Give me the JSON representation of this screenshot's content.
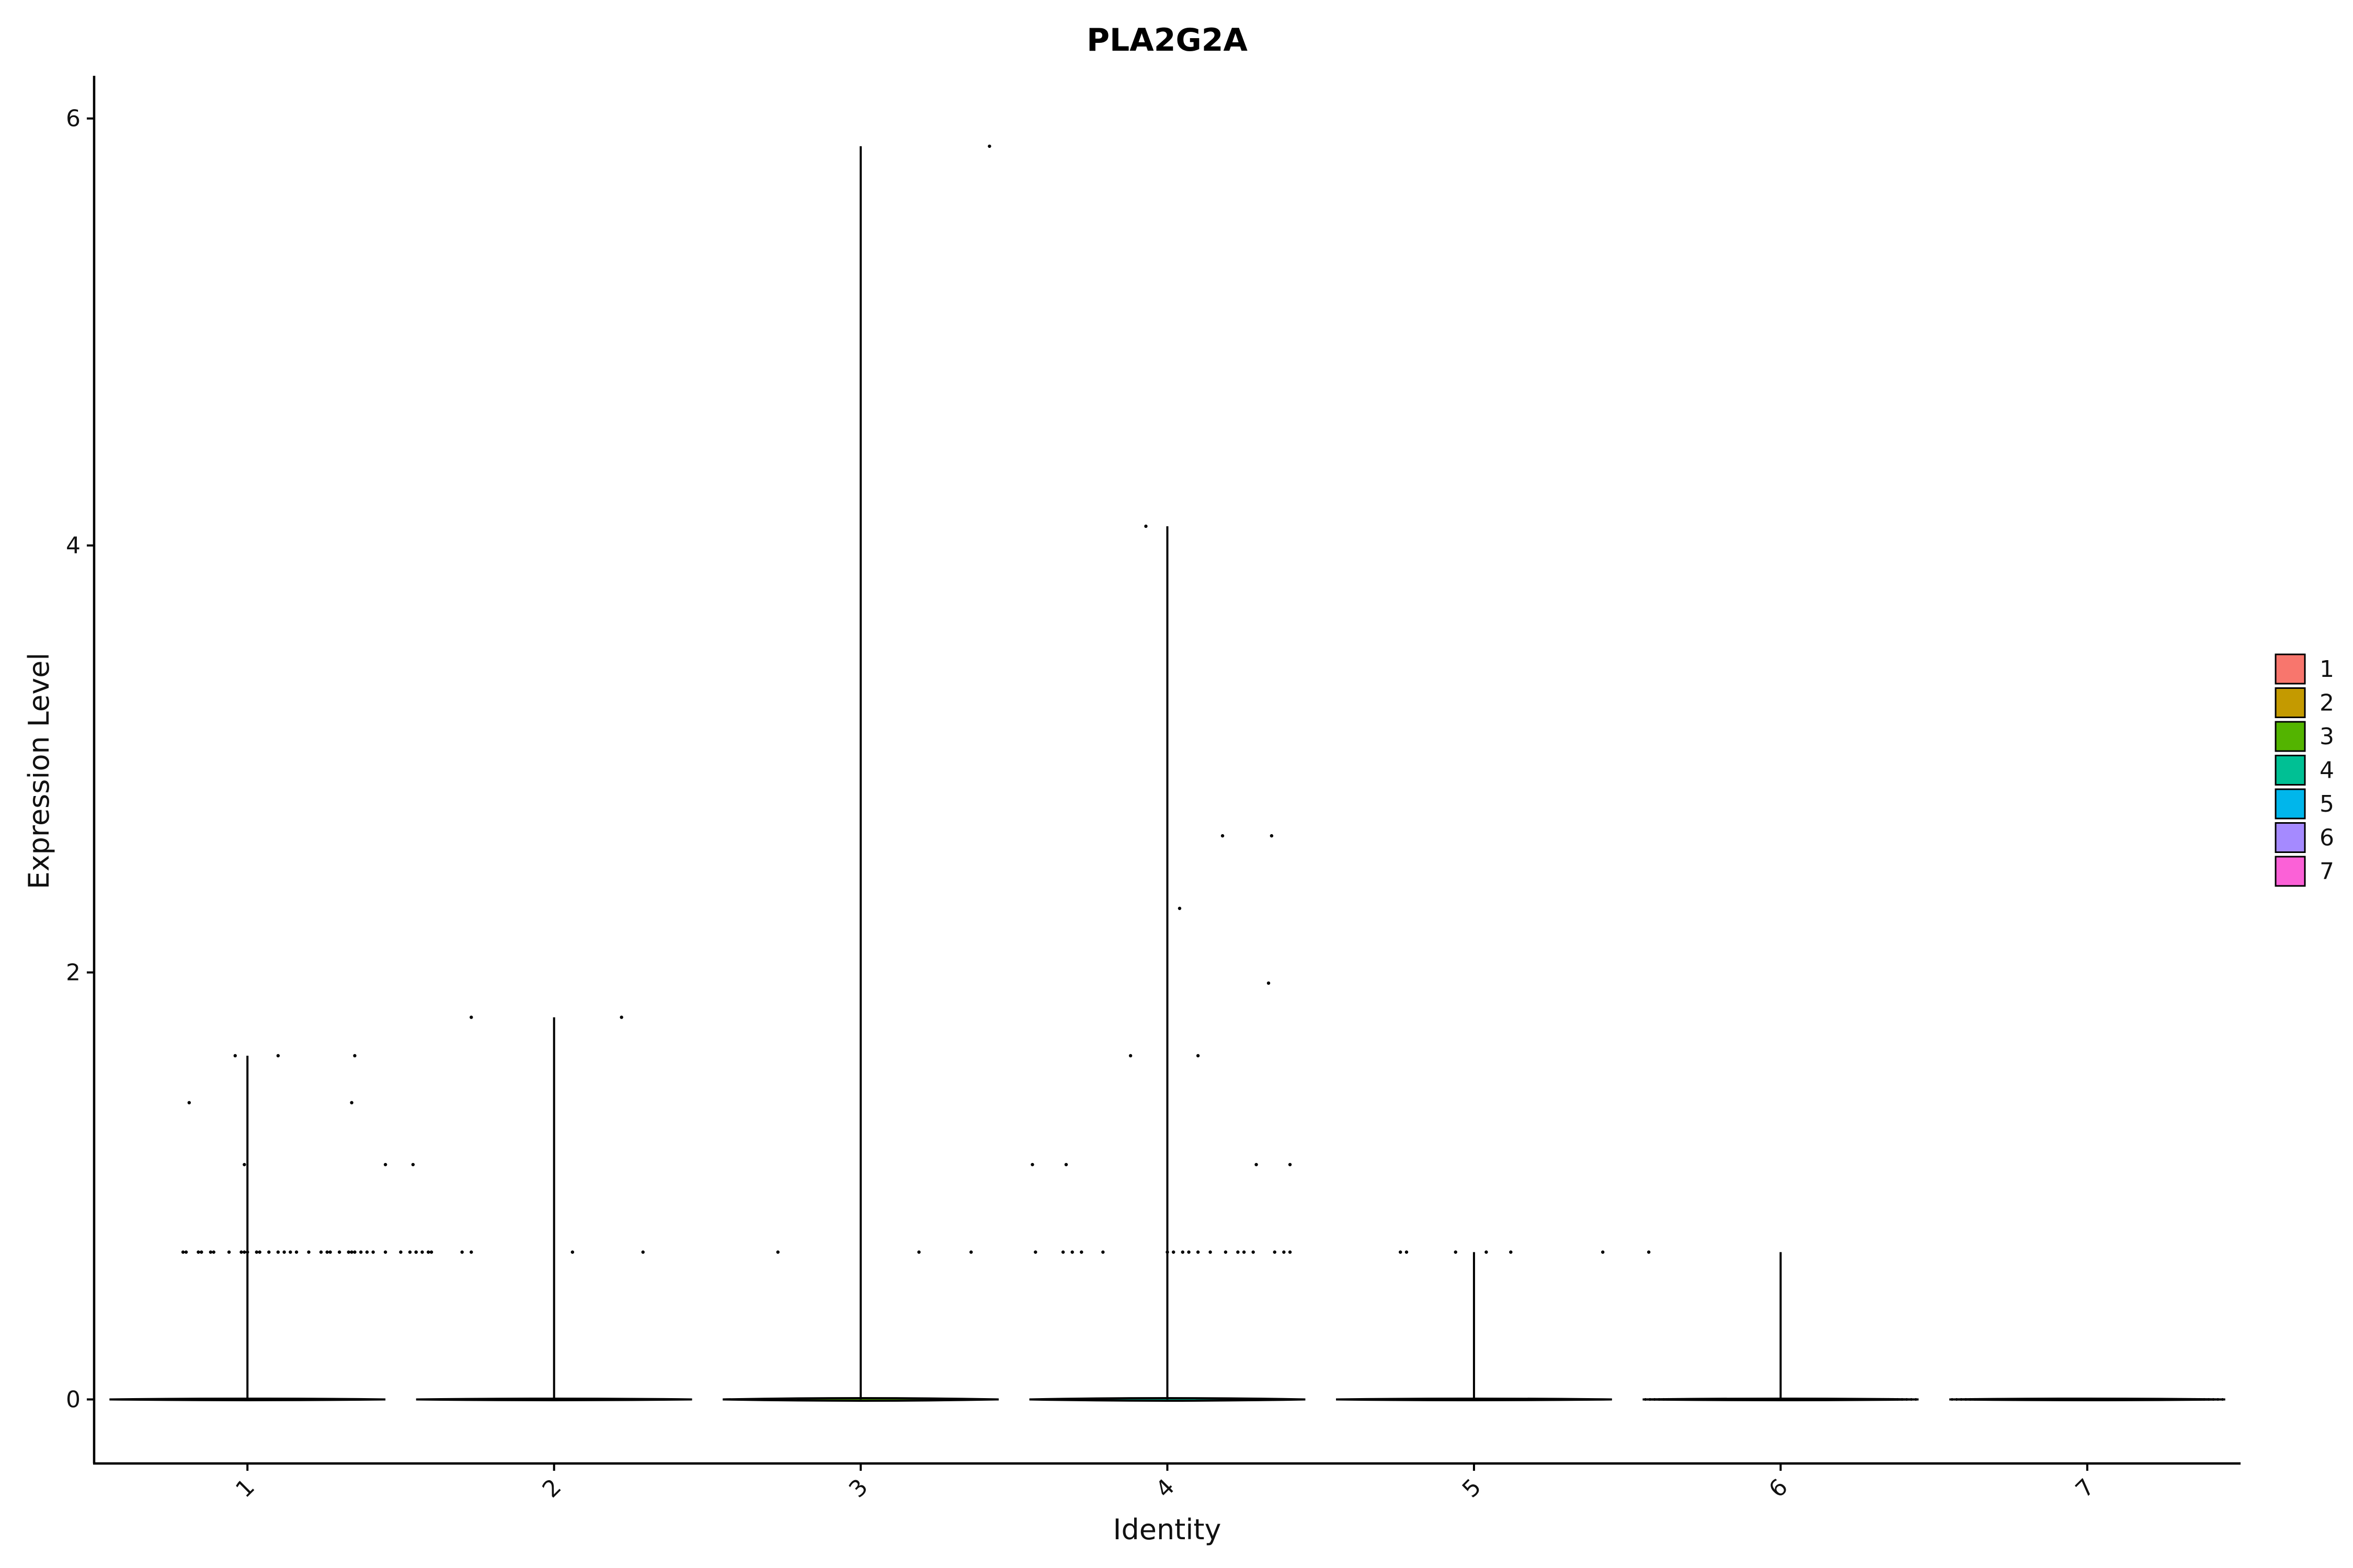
{
  "chart_data": {
    "type": "violin",
    "title": "PLA2G2A",
    "xlabel": "Identity",
    "ylabel": "Expression Level",
    "categories": [
      "1",
      "2",
      "3",
      "4",
      "5",
      "6",
      "7"
    ],
    "yticks": [
      "0",
      "2",
      "4",
      "6"
    ],
    "ylim": [
      -0.3,
      6.2
    ],
    "legend_position": "right",
    "legend_title": "",
    "colors": [
      "#F8766D",
      "#C49A00",
      "#53B400",
      "#00C094",
      "#00B6EB",
      "#A58AFF",
      "#FB61D7"
    ],
    "series": [
      {
        "name": "1",
        "max": 1.61,
        "points": [
          [
            -0.21,
            0.69
          ],
          [
            -0.2,
            0.69
          ],
          [
            -0.16,
            0.69
          ],
          [
            -0.15,
            0.69
          ],
          [
            -0.12,
            0.69
          ],
          [
            -0.11,
            0.69
          ],
          [
            -0.06,
            0.69
          ],
          [
            -0.02,
            0.69
          ],
          [
            -0.01,
            0.69
          ],
          [
            0.0,
            0.69
          ],
          [
            0.03,
            0.69
          ],
          [
            0.04,
            0.69
          ],
          [
            0.07,
            0.69
          ],
          [
            0.1,
            0.69
          ],
          [
            0.12,
            0.69
          ],
          [
            0.14,
            0.69
          ],
          [
            0.16,
            0.69
          ],
          [
            0.2,
            0.69
          ],
          [
            0.24,
            0.69
          ],
          [
            0.26,
            0.69
          ],
          [
            0.27,
            0.69
          ],
          [
            0.3,
            0.69
          ],
          [
            0.33,
            0.69
          ],
          [
            0.34,
            0.69
          ],
          [
            0.35,
            0.69
          ],
          [
            0.37,
            0.69
          ],
          [
            0.39,
            0.69
          ],
          [
            0.41,
            0.69
          ],
          [
            0.45,
            0.69
          ],
          [
            0.5,
            0.69
          ],
          [
            0.53,
            0.69
          ],
          [
            0.55,
            0.69
          ],
          [
            0.57,
            0.69
          ],
          [
            0.59,
            0.69
          ],
          [
            -0.01,
            1.1
          ],
          [
            0.45,
            1.1
          ],
          [
            -0.19,
            1.39
          ],
          [
            0.34,
            1.39
          ],
          [
            -0.04,
            1.61
          ],
          [
            0.1,
            1.61
          ],
          [
            0.35,
            1.61
          ]
        ]
      },
      {
        "name": "2",
        "max": 1.79,
        "points": [
          [
            -0.45,
            0.69
          ],
          [
            -0.4,
            0.69
          ],
          [
            -0.3,
            0.69
          ],
          [
            -0.27,
            0.69
          ],
          [
            0.06,
            0.69
          ],
          [
            0.29,
            0.69
          ],
          [
            -0.46,
            1.1
          ],
          [
            -0.27,
            1.79
          ],
          [
            0.22,
            1.79
          ]
        ]
      },
      {
        "name": "3",
        "max": 5.87,
        "points": [
          [
            -0.27,
            0.69
          ],
          [
            0.19,
            0.69
          ],
          [
            0.36,
            0.69
          ],
          [
            0.42,
            5.87
          ]
        ]
      },
      {
        "name": "4",
        "max": 4.09,
        "points": [
          [
            -0.43,
            0.69
          ],
          [
            -0.34,
            0.69
          ],
          [
            -0.31,
            0.69
          ],
          [
            -0.28,
            0.69
          ],
          [
            -0.21,
            0.69
          ],
          [
            0.0,
            0.69
          ],
          [
            0.02,
            0.69
          ],
          [
            0.05,
            0.69
          ],
          [
            0.07,
            0.69
          ],
          [
            0.1,
            0.69
          ],
          [
            0.14,
            0.69
          ],
          [
            0.19,
            0.69
          ],
          [
            0.23,
            0.69
          ],
          [
            0.25,
            0.69
          ],
          [
            0.28,
            0.69
          ],
          [
            0.35,
            0.69
          ],
          [
            0.38,
            0.69
          ],
          [
            0.4,
            0.69
          ],
          [
            -0.44,
            1.1
          ],
          [
            -0.33,
            1.1
          ],
          [
            0.29,
            1.1
          ],
          [
            0.4,
            1.1
          ],
          [
            -0.12,
            1.61
          ],
          [
            0.1,
            1.61
          ],
          [
            0.33,
            1.95
          ],
          [
            0.04,
            2.3
          ],
          [
            0.18,
            2.64
          ],
          [
            0.34,
            2.64
          ],
          [
            -0.07,
            4.09
          ]
        ]
      },
      {
        "name": "5",
        "max": 0.69,
        "points": [
          [
            -0.24,
            0.69
          ],
          [
            -0.22,
            0.69
          ],
          [
            -0.06,
            0.69
          ],
          [
            0.04,
            0.69
          ],
          [
            0.12,
            0.69
          ],
          [
            0.42,
            0.69
          ]
        ]
      },
      {
        "name": "6",
        "max": 0.69,
        "points": [
          [
            -0.43,
            0.69
          ]
        ]
      },
      {
        "name": "7",
        "max": 0.0,
        "points": []
      }
    ]
  }
}
